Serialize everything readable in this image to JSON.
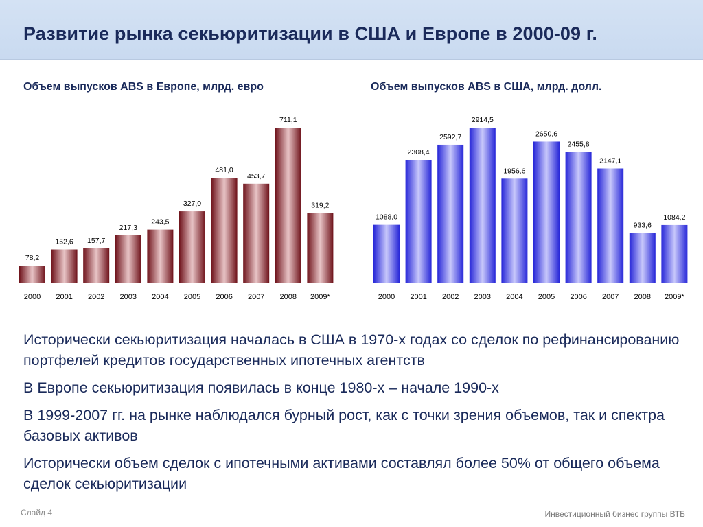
{
  "slide": {
    "title": "Развитие рынка секьюритизации в США и Европе в 2000-09 г.",
    "slide_number": "Слайд 4",
    "footer": "Инвестиционный бизнес группы ВТБ"
  },
  "bullets": [
    "Исторически секьюритизация началась в США в 1970-х годах со сделок по рефинансированию портфелей кредитов государственных ипотечных агентств",
    "В Европе секьюритизация появилась в конце 1980-х – начале 1990-х",
    "В 1999-2007 гг. на рынке наблюдался бурный рост, как с точки зрения объемов, так и спектра базовых активов",
    "Исторически объем сделок с ипотечными активами составлял более 50% от общего объема сделок секьюритизации"
  ],
  "colors": {
    "europe_bar": "#8b1c24",
    "us_bar": "#3a3ae0",
    "title": "#1a2a5a"
  },
  "chart_data": [
    {
      "type": "bar",
      "title": "Объем выпусков ABS в Европе, млрд. евро",
      "categories": [
        "2000",
        "2001",
        "2002",
        "2003",
        "2004",
        "2005",
        "2006",
        "2007",
        "2008",
        "2009*"
      ],
      "values": [
        78.2,
        152.6,
        157.7,
        217.3,
        243.5,
        327.0,
        481.0,
        453.7,
        711.1,
        319.2
      ],
      "labels": [
        "78,2",
        "152,6",
        "157,7",
        "217,3",
        "243,5",
        "327,0",
        "481,0",
        "453,7",
        "711,1",
        "319,2"
      ],
      "ylim": [
        0,
        711.1
      ]
    },
    {
      "type": "bar",
      "title": "Объем выпусков ABS в США, млрд. долл.",
      "categories": [
        "2000",
        "2001",
        "2002",
        "2003",
        "2004",
        "2005",
        "2006",
        "2007",
        "2008",
        "2009*"
      ],
      "values": [
        1088.0,
        2308.4,
        2592.7,
        2914.5,
        1956.6,
        2650.6,
        2455.8,
        2147.1,
        933.6,
        1084.2
      ],
      "labels": [
        "1088,0",
        "2308,4",
        "2592,7",
        "2914,5",
        "1956,6",
        "2650,6",
        "2455,8",
        "2147,1",
        "933,6",
        "1084,2"
      ],
      "ylim": [
        0,
        2914.5
      ]
    }
  ]
}
